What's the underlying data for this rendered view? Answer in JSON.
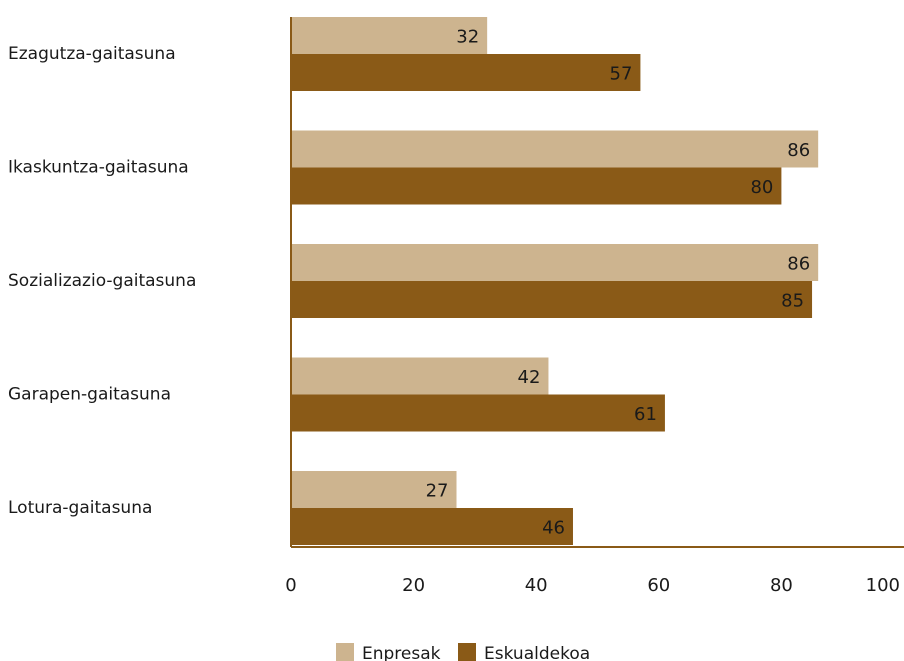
{
  "chart_data": {
    "type": "bar",
    "orientation": "horizontal",
    "title": "",
    "xlabel": "",
    "ylabel": "",
    "categories": [
      "Ezagutza-gaitasuna",
      "Ikaskuntza-gaitasuna",
      "Sozializazio-gaitasuna",
      "Garapen-gaitasuna",
      "Lotura-gaitasuna"
    ],
    "series": [
      {
        "name": "Enpresak",
        "color": "#cdb48f",
        "values": [
          32,
          86,
          86,
          42,
          27
        ]
      },
      {
        "name": "Eskualdekoa",
        "color": "#8a5a17",
        "values": [
          57,
          80,
          85,
          61,
          46
        ]
      }
    ],
    "xlim": [
      0,
      100
    ],
    "xticks": [
      "0",
      "20",
      "40",
      "60",
      "80",
      "100"
    ],
    "grid": false,
    "legend_position": "bottom-center"
  }
}
